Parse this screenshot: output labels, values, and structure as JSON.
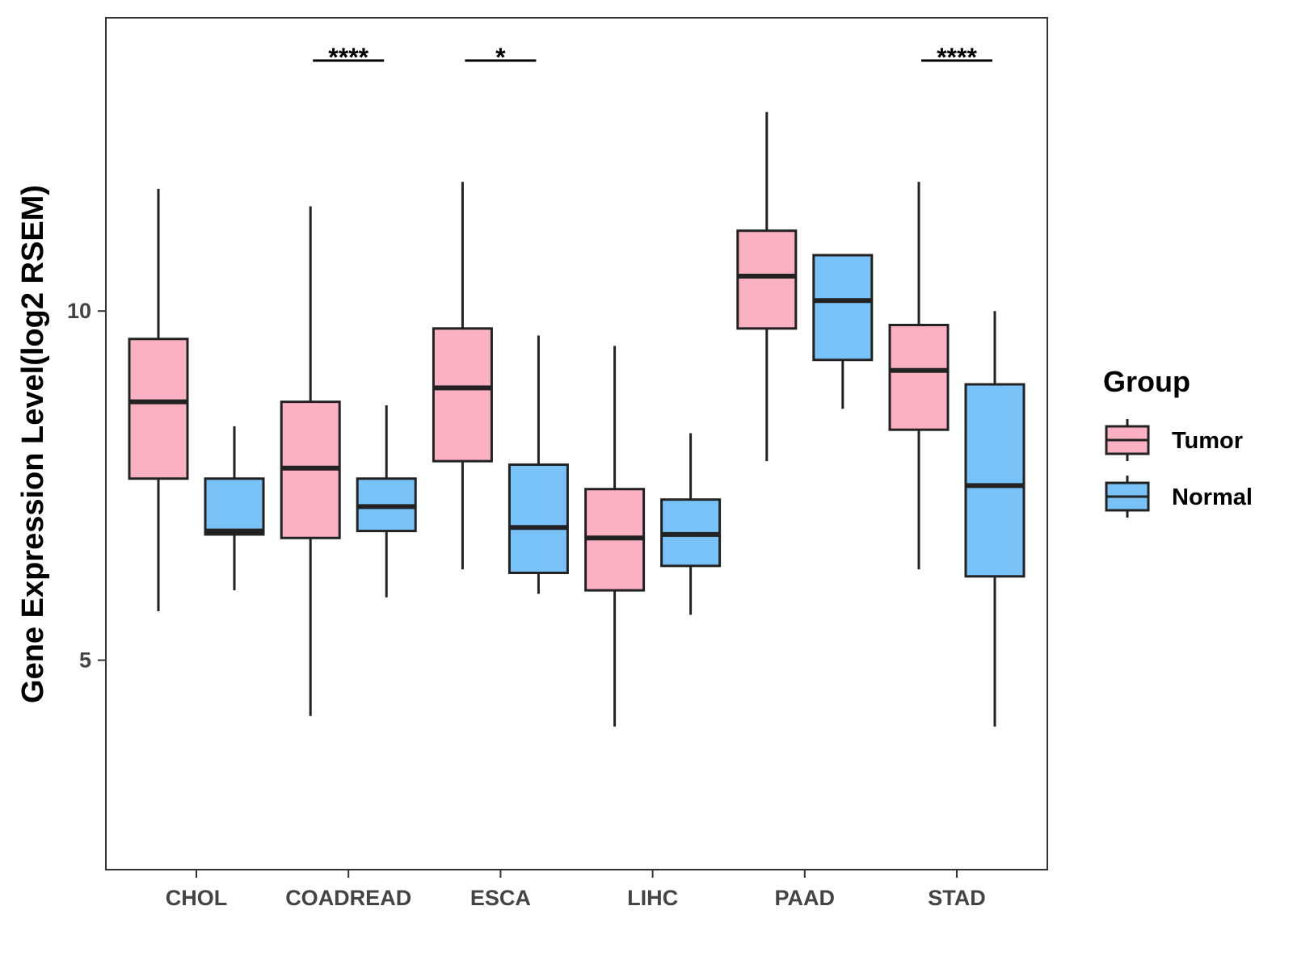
{
  "chart_data": {
    "type": "box",
    "title": "",
    "xlabel": "",
    "ylabel": "Gene Expression Level(log2 RSEM)",
    "ylim": [
      2.0,
      14.2
    ],
    "yticks": [
      5,
      10
    ],
    "ytick_labels": [
      "5",
      "10"
    ],
    "categories": [
      "CHOL",
      "COADREAD",
      "ESCA",
      "LIHC",
      "PAAD",
      "STAD"
    ],
    "grid": false,
    "legend": {
      "title": "Group",
      "position": "right",
      "entries": [
        "Tumor",
        "Normal"
      ]
    },
    "series": [
      {
        "name": "Tumor",
        "color": "#FBB1C2",
        "boxes": [
          {
            "category": "CHOL",
            "min": 5.7,
            "q1": 7.6,
            "median": 8.7,
            "q3": 9.6,
            "max": 11.75
          },
          {
            "category": "COADREAD",
            "min": 4.2,
            "q1": 6.75,
            "median": 7.75,
            "q3": 8.7,
            "max": 11.5
          },
          {
            "category": "ESCA",
            "min": 6.3,
            "q1": 7.85,
            "median": 8.9,
            "q3": 9.75,
            "max": 11.85
          },
          {
            "category": "LIHC",
            "min": 4.05,
            "q1": 6.0,
            "median": 6.75,
            "q3": 7.45,
            "max": 9.5
          },
          {
            "category": "PAAD",
            "min": 7.85,
            "q1": 9.75,
            "median": 10.5,
            "q3": 11.15,
            "max": 12.85
          },
          {
            "category": "STAD",
            "min": 6.3,
            "q1": 8.3,
            "median": 9.15,
            "q3": 9.8,
            "max": 11.85
          }
        ]
      },
      {
        "name": "Normal",
        "color": "#78C2F8",
        "boxes": [
          {
            "category": "CHOL",
            "min": 6.0,
            "q1": 6.8,
            "median": 6.85,
            "q3": 7.6,
            "max": 8.35
          },
          {
            "category": "COADREAD",
            "min": 5.9,
            "q1": 6.85,
            "median": 7.2,
            "q3": 7.6,
            "max": 8.65
          },
          {
            "category": "ESCA",
            "min": 5.95,
            "q1": 6.25,
            "median": 6.9,
            "q3": 7.8,
            "max": 9.65
          },
          {
            "category": "LIHC",
            "min": 5.65,
            "q1": 6.35,
            "median": 6.8,
            "q3": 7.3,
            "max": 8.25
          },
          {
            "category": "PAAD",
            "min": 8.6,
            "q1": 9.3,
            "median": 10.15,
            "q3": 10.8,
            "max": 10.8
          },
          {
            "category": "STAD",
            "min": 4.05,
            "q1": 6.2,
            "median": 7.5,
            "q3": 8.95,
            "max": 10.0
          }
        ]
      }
    ],
    "significance": [
      {
        "category": "COADREAD",
        "label": "****"
      },
      {
        "category": "ESCA",
        "label": "*"
      },
      {
        "category": "STAD",
        "label": "****"
      }
    ]
  }
}
